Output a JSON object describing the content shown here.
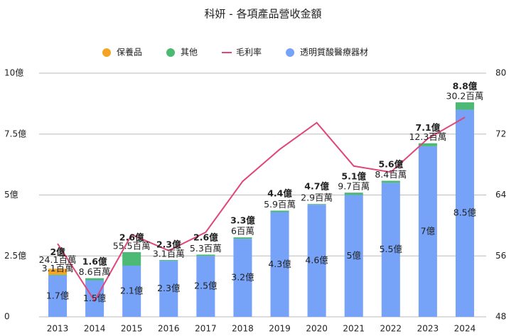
{
  "chart_data": {
    "type": "bar",
    "title": "科妍 - 各項產品營收金額",
    "categories": [
      "2013",
      "2014",
      "2015",
      "2016",
      "2017",
      "2018",
      "2019",
      "2020",
      "2021",
      "2022",
      "2023",
      "2024"
    ],
    "series": [
      {
        "name": "保養品",
        "type": "bar",
        "color": "#f4a425",
        "values": [
          0.241,
          null,
          null,
          null,
          null,
          null,
          null,
          null,
          null,
          null,
          null,
          null
        ],
        "value_labels": [
          "24.1百萬",
          null,
          null,
          null,
          null,
          null,
          null,
          null,
          null,
          null,
          null,
          null
        ]
      },
      {
        "name": "其他",
        "type": "bar",
        "color": "#4cb975",
        "values": [
          0.031,
          0.086,
          0.555,
          0.031,
          0.053,
          0.06,
          0.059,
          0.029,
          0.097,
          0.084,
          0.123,
          0.302
        ],
        "value_labels": [
          "3.1百萬",
          "8.6百萬",
          "55.5百萬",
          "3.1百萬",
          "5.3百萬",
          "6百萬",
          "5.9百萬",
          "2.9百萬",
          "9.7百萬",
          "8.4百萬",
          "12.3百萬",
          "30.2百萬"
        ]
      },
      {
        "name": "毛利率",
        "type": "line",
        "axis": "y2",
        "color": "#e0457b",
        "values": [
          57.6,
          50.1,
          58.8,
          56.7,
          59.1,
          65.8,
          70.0,
          73.5,
          67.8,
          67.0,
          71.4,
          74.2
        ]
      },
      {
        "name": "透明質酸醫療器材",
        "type": "bar",
        "color": "#76a2f7",
        "values": [
          1.7,
          1.5,
          2.1,
          2.3,
          2.5,
          3.2,
          4.3,
          4.6,
          5,
          5.5,
          7,
          8.5
        ],
        "value_labels": [
          "1.7億",
          "1.5億",
          "2.1億",
          "2.3億",
          "2.5億",
          "3.2億",
          "4.3億",
          "4.6億",
          "5億",
          "5.5億",
          "7億",
          "8.5億"
        ]
      }
    ],
    "totals": [
      2,
      1.6,
      2.6,
      2.3,
      2.6,
      3.3,
      4.4,
      4.7,
      5.1,
      5.6,
      7.1,
      8.8
    ],
    "total_labels": [
      "2億",
      "1.6億",
      "2.6億",
      "2.3億",
      "2.6億",
      "3.3億",
      "4.4億",
      "4.7億",
      "5.1億",
      "5.6億",
      "7.1億",
      "8.8億"
    ],
    "ylim": [
      0,
      10
    ],
    "yticks": [
      0,
      {
        "value": 2.5,
        "label": "2.5億"
      },
      {
        "value": 5,
        "label": "5億"
      },
      {
        "value": 7.5,
        "label": "7.5億"
      },
      {
        "value": 10,
        "label": "10億"
      }
    ],
    "y2lim": [
      48,
      80
    ],
    "y2ticks": [
      48,
      56,
      64,
      72,
      80
    ],
    "grid": true,
    "legend": "top"
  }
}
